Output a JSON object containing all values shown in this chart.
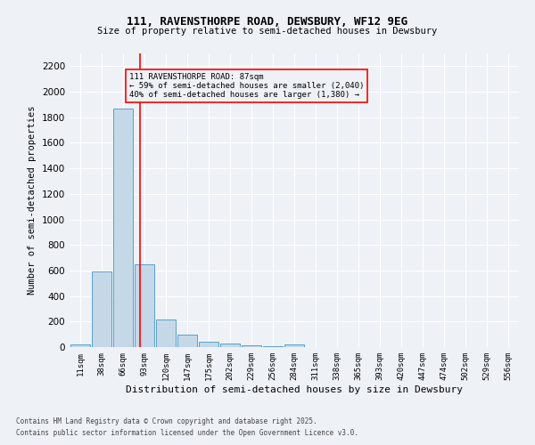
{
  "title": "111, RAVENSTHORPE ROAD, DEWSBURY, WF12 9EG",
  "subtitle": "Size of property relative to semi-detached houses in Dewsbury",
  "xlabel": "Distribution of semi-detached houses by size in Dewsbury",
  "ylabel": "Number of semi-detached properties",
  "footnote1": "Contains HM Land Registry data © Crown copyright and database right 2025.",
  "footnote2": "Contains public sector information licensed under the Open Government Licence v3.0.",
  "bar_labels": [
    "11sqm",
    "38sqm",
    "66sqm",
    "93sqm",
    "120sqm",
    "147sqm",
    "175sqm",
    "202sqm",
    "229sqm",
    "256sqm",
    "284sqm",
    "311sqm",
    "338sqm",
    "365sqm",
    "393sqm",
    "420sqm",
    "447sqm",
    "474sqm",
    "502sqm",
    "529sqm",
    "556sqm"
  ],
  "bar_values": [
    20,
    590,
    1870,
    650,
    215,
    95,
    40,
    25,
    15,
    5,
    20,
    0,
    0,
    0,
    0,
    0,
    0,
    0,
    0,
    0,
    0
  ],
  "bar_color": "#c5d8e8",
  "bar_edge_color": "#5a9ec9",
  "ylim": [
    0,
    2300
  ],
  "yticks": [
    0,
    200,
    400,
    600,
    800,
    1000,
    1200,
    1400,
    1600,
    1800,
    2000,
    2200
  ],
  "annotation_text": "111 RAVENSTHORPE ROAD: 87sqm\n← 59% of semi-detached houses are smaller (2,040)\n40% of semi-detached houses are larger (1,380) →",
  "background_color": "#eef2f7",
  "grid_color": "#ffffff"
}
